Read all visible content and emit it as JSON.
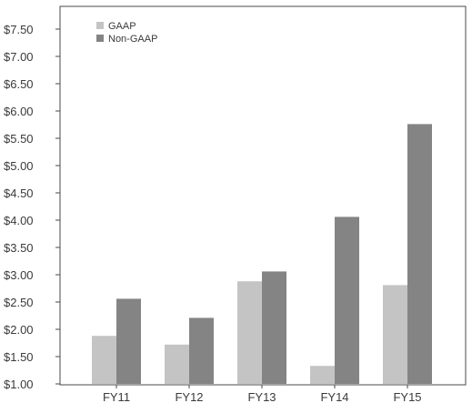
{
  "chart_data": {
    "type": "bar",
    "categories": [
      "FY11",
      "FY12",
      "FY13",
      "FY14",
      "FY15"
    ],
    "series": [
      {
        "name": "GAAP",
        "values": [
          1.88,
          1.72,
          2.88,
          1.33,
          2.81
        ],
        "color": "#c4c4c4"
      },
      {
        "name": "Non-GAAP",
        "values": [
          2.56,
          2.21,
          3.06,
          4.06,
          5.76
        ],
        "color": "#848484"
      }
    ],
    "yticks": [
      "$1.00",
      "$1.50",
      "$2.00",
      "$2.50",
      "$3.00",
      "$3.50",
      "$4.00",
      "$4.50",
      "$5.00",
      "$5.50",
      "$6.00",
      "$6.50",
      "$7.00",
      "$7.50"
    ],
    "ylim": [
      1.0,
      8.0
    ],
    "title": "",
    "xlabel": "",
    "ylabel": "",
    "legend": "top-left",
    "grid": false
  }
}
